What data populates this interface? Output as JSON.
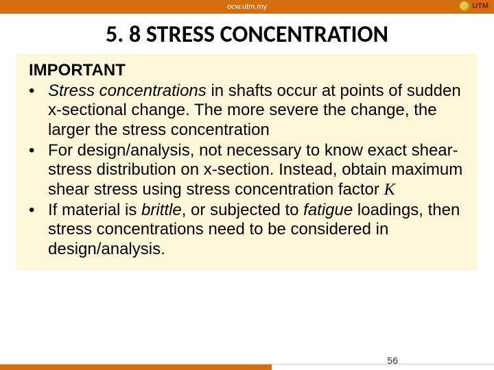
{
  "header": {
    "url": "ocw.utm.my",
    "logo_text": "UTM"
  },
  "title": "5. 8 STRESS CONCENTRATION",
  "box": {
    "heading": "IMPORTANT",
    "bullets": [
      {
        "pre_italic": "",
        "italic1": "Stress concentrations",
        "mid": " in shafts occur at points of sudden x-sectional change. The more severe the change, the larger the stress concentration",
        "italic2": "",
        "post": ""
      },
      {
        "pre_italic": "For design/analysis, not necessary to know exact shear-stress distribution on x-section. Instead, obtain maximum shear stress using stress concentration factor ",
        "italic1": "",
        "mid": "",
        "italic2": "",
        "post": "",
        "k": "K"
      },
      {
        "pre_italic": "If material is ",
        "italic1": "brittle",
        "mid": ", or subjected to ",
        "italic2": "fatigue",
        "post": " loadings, then stress concentrations need to be considered in design/analysis."
      }
    ]
  },
  "page_number": "56",
  "colors": {
    "accent": "#d56e0e",
    "box_bg": "#fdf7d9",
    "logo_red": "#7a1a1a"
  }
}
